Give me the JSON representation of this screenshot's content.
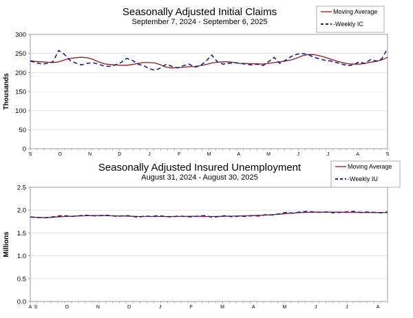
{
  "colors": {
    "moving_average": "#8b1a1a",
    "weekly": "#1a1a8c",
    "axis": "#808080",
    "grid": "#d8d8d8"
  },
  "chart_data": [
    {
      "type": "line",
      "title": "Seasonally Adjusted Initial Claims",
      "subtitle": "September 7, 2024 - September 6, 2025",
      "ylabel": "Thousands",
      "ylim": [
        0,
        300
      ],
      "yticks": [
        0,
        50,
        100,
        150,
        200,
        250,
        300
      ],
      "ytick_labels": [
        "0",
        "50",
        "100",
        "150",
        "200",
        "250",
        "300"
      ],
      "month_labels": [
        "S",
        "O",
        "N",
        "D",
        "J",
        "F",
        "M",
        "A",
        "M",
        "J",
        "J",
        "A",
        "S"
      ],
      "legend_position": "top-right",
      "series": [
        {
          "name": "Moving Average",
          "style": "solid",
          "values": [
            231,
            229,
            228,
            227,
            226,
            228,
            233,
            237,
            239,
            240,
            239,
            235,
            228,
            223,
            221,
            220,
            219,
            219,
            221,
            224,
            226,
            226,
            225,
            220,
            214,
            212,
            213,
            214,
            215,
            216,
            218,
            221,
            225,
            227,
            228,
            228,
            226,
            224,
            224,
            223,
            223,
            222,
            224,
            226,
            228,
            230,
            233,
            238,
            244,
            247,
            247,
            244,
            240,
            235,
            230,
            226,
            223,
            222,
            222,
            224,
            227,
            229,
            233,
            240
          ]
        },
        {
          "name": "Weekly IC",
          "style": "dash",
          "values": [
            230,
            226,
            222,
            224,
            228,
            258,
            248,
            232,
            225,
            220,
            224,
            226,
            222,
            217,
            216,
            220,
            226,
            237,
            232,
            222,
            218,
            210,
            206,
            212,
            222,
            216,
            212,
            218,
            222,
            214,
            218,
            230,
            246,
            228,
            222,
            224,
            226,
            224,
            222,
            220,
            222,
            218,
            228,
            240,
            224,
            232,
            242,
            248,
            250,
            247,
            240,
            236,
            232,
            230,
            226,
            222,
            218,
            220,
            228,
            224,
            234,
            230,
            236,
            263
          ]
        }
      ]
    },
    {
      "type": "line",
      "title": "Seasonally Adjusted Insured Unemployment",
      "subtitle": "August 31, 2024 - August 30, 2025",
      "ylabel": "Millions",
      "ylim": [
        0,
        2.5
      ],
      "yticks": [
        0,
        0.5,
        1.0,
        1.5,
        2.0,
        2.5
      ],
      "ytick_labels": [
        "0.0",
        "0.5",
        "1.0",
        "1.5",
        "2.0",
        "2.5"
      ],
      "month_labels": [
        "A",
        "S",
        "O",
        "N",
        "D",
        "J",
        "F",
        "M",
        "A",
        "M",
        "J",
        "J",
        "A"
      ],
      "legend_position": "top-right",
      "series": [
        {
          "name": "Moving Average",
          "style": "solid",
          "values": [
            1.845,
            1.84,
            1.835,
            1.84,
            1.85,
            1.86,
            1.865,
            1.87,
            1.875,
            1.88,
            1.88,
            1.88,
            1.875,
            1.87,
            1.87,
            1.865,
            1.86,
            1.86,
            1.86,
            1.86,
            1.86,
            1.86,
            1.86,
            1.862,
            1.865,
            1.865,
            1.86,
            1.86,
            1.862,
            1.865,
            1.868,
            1.87,
            1.875,
            1.88,
            1.885,
            1.89,
            1.9,
            1.91,
            1.925,
            1.935,
            1.945,
            1.95,
            1.955,
            1.955,
            1.955,
            1.955,
            1.955,
            1.95,
            1.95,
            1.948,
            1.948,
            1.948,
            1.945,
            1.945
          ]
        },
        {
          "name": "Weekly IU",
          "style": "dash",
          "values": [
            1.85,
            1.84,
            1.83,
            1.84,
            1.87,
            1.88,
            1.86,
            1.87,
            1.89,
            1.88,
            1.87,
            1.89,
            1.88,
            1.86,
            1.88,
            1.87,
            1.84,
            1.87,
            1.86,
            1.88,
            1.86,
            1.85,
            1.87,
            1.86,
            1.85,
            1.87,
            1.88,
            1.84,
            1.86,
            1.88,
            1.85,
            1.87,
            1.86,
            1.88,
            1.87,
            1.9,
            1.89,
            1.92,
            1.95,
            1.93,
            1.96,
            1.97,
            1.96,
            1.95,
            1.96,
            1.94,
            1.95,
            1.96,
            1.97,
            1.95,
            1.96,
            1.95,
            1.94,
            1.96
          ]
        }
      ]
    }
  ]
}
